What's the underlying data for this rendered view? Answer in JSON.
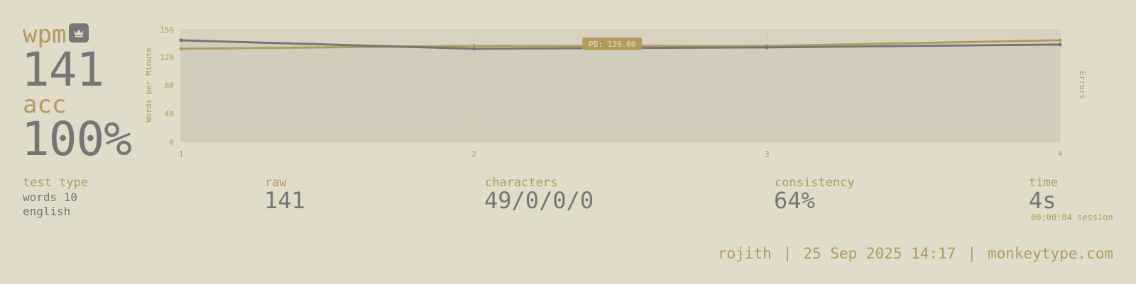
{
  "summary": {
    "wpm_label": "wpm",
    "wpm_value": "141",
    "acc_label": "acc",
    "acc_value": "100%",
    "crown_icon": "crown-icon"
  },
  "chart_data": {
    "type": "line",
    "x": [
      1,
      2,
      3,
      4
    ],
    "x_ticks": [
      "1",
      "2",
      "3",
      "4"
    ],
    "y_ticks": [
      "0",
      "40",
      "80",
      "120",
      "159"
    ],
    "ylim": [
      0,
      159
    ],
    "ylabel": "Words per Minute",
    "y2label": "Errors",
    "grid": true,
    "series": [
      {
        "values": [
          144,
          132,
          134,
          138
        ],
        "color": "#767676"
      },
      {
        "values": [
          132,
          136,
          136,
          144
        ],
        "color": "#b29b5e"
      }
    ],
    "annotation": {
      "text": "PB: 139.00",
      "y": 139
    }
  },
  "stats": {
    "test_type_label": "test type",
    "test_type_line1": "words 10",
    "test_type_line2": "english",
    "raw_label": "raw",
    "raw_value": "141",
    "characters_label": "characters",
    "characters_value": "49/0/0/0",
    "consistency_label": "consistency",
    "consistency_value": "64%",
    "time_label": "time",
    "time_value": "4s",
    "session_value": "00:00:04 session"
  },
  "footer": {
    "username": "rojith",
    "separator": "|",
    "date": "25 Sep 2025 14:17",
    "site": "monkeytype.com"
  },
  "colors": {
    "background": "#e1dbc9",
    "main": "#b29b5e",
    "text": "#767676"
  }
}
